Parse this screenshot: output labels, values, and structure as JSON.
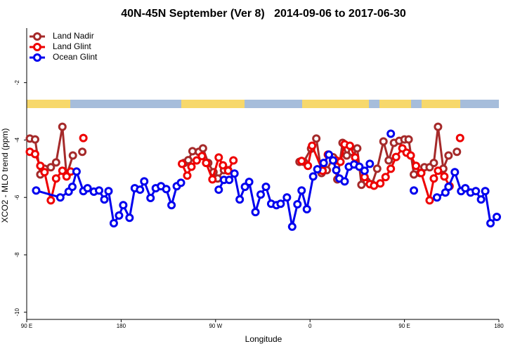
{
  "chart_data": {
    "type": "line",
    "title": "40N-45N September (Ver 8)   2014-09-06 to 2017-06-30",
    "xlabel": "Longitude",
    "ylabel": "XCO2 - MLO trend (ppm)",
    "xlim": [
      90,
      540
    ],
    "ylim": [
      -10.25,
      -0.1
    ],
    "xticks": [
      {
        "value": 90,
        "label": "90 E"
      },
      180,
      {
        "value": 270,
        "label": "90 W"
      },
      {
        "value": 360,
        "label": "0"
      },
      {
        "value": 450,
        "label": "90 E"
      },
      {
        "value": 540,
        "label": "180"
      }
    ],
    "yticks": [
      -10,
      -8,
      -6,
      -4,
      -2
    ],
    "legend": "upper left",
    "series": [
      {
        "name": "Land Nadir",
        "color": "#a52a2a",
        "x": [
          93,
          98,
          103,
          107,
          113,
          118,
          124,
          128,
          134,
          139,
          143,
          150,
          240,
          244,
          248,
          254,
          258,
          263,
          268,
          272,
          278,
          282,
          290,
          350,
          354,
          361,
          366,
          371,
          376,
          382,
          386,
          391,
          395,
          400,
          405,
          409,
          414,
          419,
          424,
          430,
          435,
          440,
          445,
          450,
          454,
          459,
          465,
          469,
          474,
          478,
          482,
          487,
          492,
          496,
          500
        ],
        "values": [
          -3.95,
          -3.98,
          -5.2,
          -5.0,
          -4.95,
          -4.78,
          -3.54,
          -5.24,
          -4.54,
          null,
          -4.41,
          null,
          -4.8,
          -4.7,
          -4.39,
          -4.41,
          -4.29,
          -4.8,
          -5.12,
          -5.34,
          -5.05,
          -5.05,
          null,
          -4.76,
          -4.76,
          -4.3,
          -3.95,
          -5.15,
          -5.05,
          -4.6,
          -5.37,
          -4.1,
          -4.54,
          -4.41,
          -4.29,
          -5.56,
          -5.44,
          -5.54,
          -5.0,
          -4.05,
          -4.71,
          -4.1,
          -4.03,
          -3.98,
          -3.98,
          -5.2,
          -5.15,
          -4.95,
          -4.95,
          -4.8,
          -3.54,
          -5.0,
          -4.54,
          null,
          -4.41
        ]
      },
      {
        "name": "Land Glint",
        "color": "#ee0000",
        "x": [
          93,
          98,
          103,
          107,
          113,
          118,
          124,
          128,
          132,
          138,
          144,
          200,
          238,
          243,
          247,
          252,
          257,
          261,
          267,
          273,
          277,
          282,
          287,
          320,
          352,
          358,
          362,
          372,
          377,
          385,
          389,
          393,
          398,
          403,
          412,
          417,
          421,
          427,
          432,
          437,
          442,
          448,
          452,
          456,
          461,
          466,
          474,
          478,
          482,
          488,
          493,
          498,
          503
        ],
        "values": [
          -4.41,
          -4.49,
          -4.9,
          -5.12,
          -6.1,
          -5.34,
          -5.07,
          -5.27,
          -5.1,
          null,
          -3.93,
          null,
          -4.83,
          -5.24,
          -4.93,
          -4.71,
          -4.56,
          -4.8,
          -5.37,
          -4.61,
          -4.88,
          -5.07,
          -4.71,
          null,
          -4.73,
          -4.9,
          -4.2,
          -5.07,
          -4.51,
          -4.71,
          -4.76,
          -4.15,
          -4.2,
          -4.61,
          -5.29,
          -5.54,
          -5.59,
          -5.51,
          -5.29,
          -5.0,
          -4.59,
          -4.29,
          -4.44,
          -4.54,
          -4.9,
          -5.15,
          -6.1,
          -5.34,
          -5.07,
          -5.27,
          -5.61,
          null,
          -3.93
        ]
      },
      {
        "name": "Ocean Glint",
        "color": "#0000ee",
        "x": [
          99,
          122,
          130,
          133.5,
          137.5,
          144,
          148,
          154,
          159,
          164,
          168,
          173,
          178,
          182,
          188,
          193,
          198,
          202,
          208,
          213,
          218,
          223,
          228,
          233,
          237,
          255,
          273,
          278,
          283,
          288,
          293,
          298,
          302,
          308,
          313,
          318,
          323,
          328,
          332,
          338,
          343,
          348,
          352,
          357,
          363,
          367,
          373,
          378,
          382,
          385,
          388,
          393,
          397,
          402,
          407,
          412,
          417,
          427,
          437,
          448,
          459,
          470,
          481,
          489,
          492,
          498,
          504,
          508,
          513,
          518,
          523,
          527,
          532,
          538
        ],
        "values": [
          -5.76,
          -6.0,
          -5.8,
          -5.63,
          -5.1,
          -5.78,
          -5.68,
          -5.8,
          -5.76,
          -6.07,
          -5.78,
          -6.9,
          -6.63,
          -6.27,
          -6.71,
          -5.68,
          -5.73,
          -5.44,
          -6.02,
          -5.68,
          -5.61,
          -5.71,
          -6.27,
          -5.61,
          -5.49,
          null,
          -5.73,
          -5.39,
          -5.39,
          -5.17,
          -6.07,
          -5.63,
          -5.46,
          -6.51,
          -5.9,
          -5.63,
          -6.22,
          -6.27,
          -6.22,
          -6.0,
          -7.02,
          -6.24,
          -5.76,
          -6.41,
          -5.27,
          -5.02,
          -4.8,
          -4.51,
          -4.71,
          -5.05,
          -5.34,
          -5.44,
          -4.93,
          -4.85,
          -4.93,
          -5.07,
          -4.83,
          null,
          -3.78,
          null,
          -5.76,
          null,
          -6.0,
          -5.83,
          -5.63,
          -5.12,
          -5.78,
          -5.68,
          -5.83,
          -5.78,
          -6.07,
          -5.78,
          -6.9,
          -6.68
        ]
      }
    ]
  }
}
